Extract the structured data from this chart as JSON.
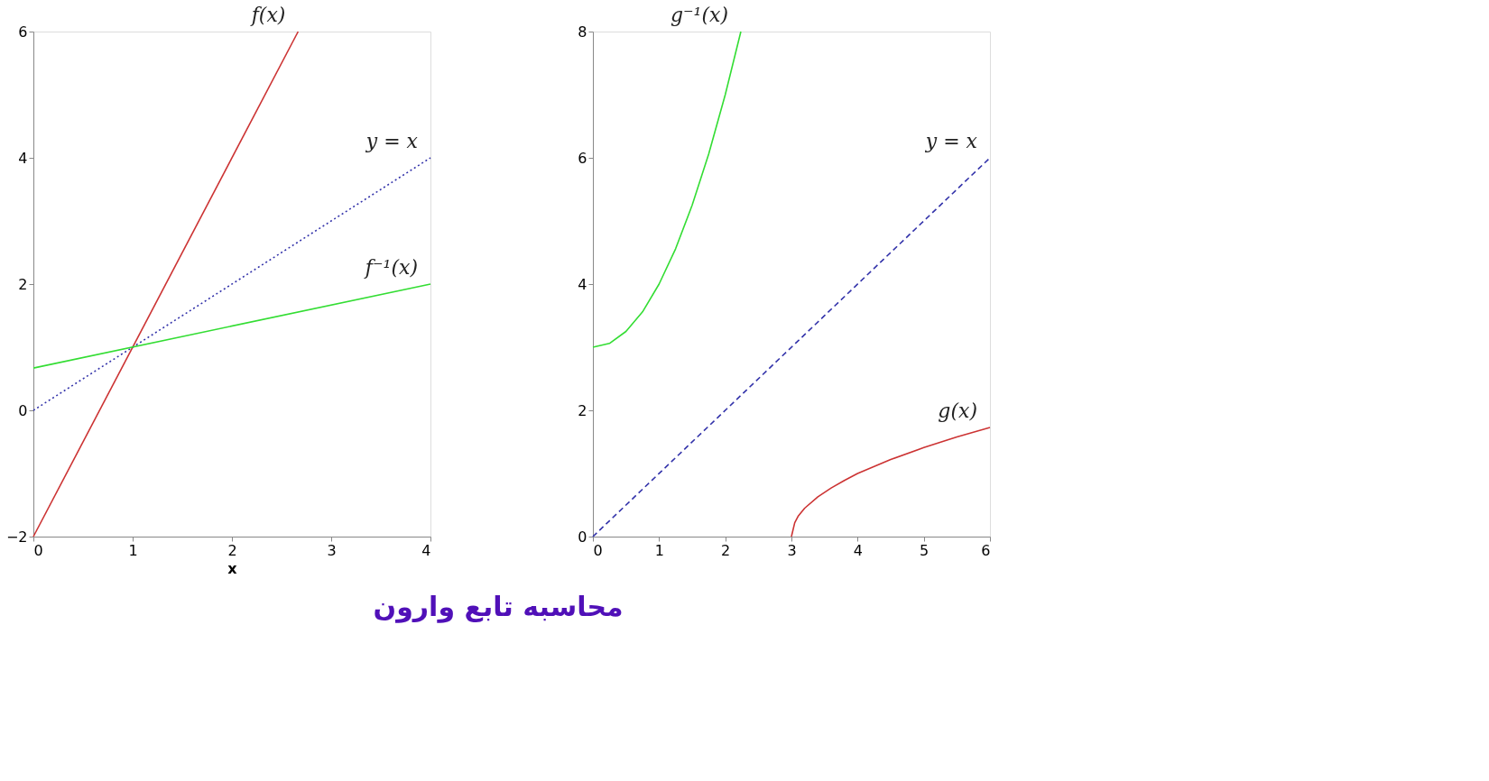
{
  "chart_data": [
    {
      "type": "line",
      "title": "محاسبه تابع وارون",
      "xlabel": "x",
      "xlim": [
        0,
        4
      ],
      "ylim": [
        -2,
        6
      ],
      "xticks": [
        0,
        1,
        2,
        3,
        4
      ],
      "yticks": [
        -2,
        0,
        2,
        4,
        6
      ],
      "grid": false,
      "legend": false,
      "marker": "none",
      "series": [
        {
          "name": "f(x)",
          "color": "#cc3333",
          "line_style": "solid",
          "x": [
            0,
            2.667
          ],
          "values": [
            -2,
            6
          ]
        },
        {
          "name": "y = x",
          "color": "#3333aa",
          "line_style": "dotted",
          "x": [
            0,
            4
          ],
          "values": [
            0,
            4
          ]
        },
        {
          "name": "f⁻¹(x)",
          "color": "#33dd33",
          "line_style": "solid",
          "x": [
            0,
            4
          ],
          "values": [
            0.67,
            2
          ]
        }
      ]
    },
    {
      "type": "line",
      "xlim": [
        0,
        6
      ],
      "ylim": [
        0,
        8
      ],
      "xticks": [
        0,
        1,
        2,
        3,
        4,
        5,
        6
      ],
      "yticks": [
        0,
        2,
        4,
        6,
        8
      ],
      "grid": false,
      "legend": false,
      "marker": "none",
      "series": [
        {
          "name": "g⁻¹(x)",
          "color": "#33dd33",
          "line_style": "solid",
          "x": [
            0,
            0.25,
            0.5,
            0.75,
            1,
            1.25,
            1.5,
            1.75,
            2,
            2.236
          ],
          "values": [
            3,
            3.06,
            3.25,
            3.56,
            4,
            4.56,
            5.25,
            6.06,
            7,
            8
          ]
        },
        {
          "name": "y = x",
          "color": "#3333aa",
          "line_style": "dashed",
          "x": [
            0,
            6
          ],
          "values": [
            0,
            6
          ]
        },
        {
          "name": "g(x)",
          "color": "#cc3333",
          "line_style": "solid",
          "x": [
            3,
            3.05,
            3.1,
            3.2,
            3.4,
            3.6,
            3.8,
            4,
            4.5,
            5,
            5.5,
            6
          ],
          "values": [
            0,
            0.22,
            0.32,
            0.45,
            0.63,
            0.77,
            0.89,
            1,
            1.22,
            1.41,
            1.58,
            1.73
          ]
        }
      ]
    }
  ]
}
